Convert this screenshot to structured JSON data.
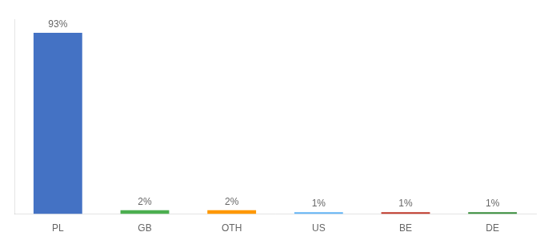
{
  "chart_data": {
    "type": "bar",
    "categories": [
      "PL",
      "GB",
      "OTH",
      "US",
      "BE",
      "DE"
    ],
    "values": [
      93,
      2,
      2,
      1,
      1,
      1
    ],
    "value_labels": [
      "93%",
      "2%",
      "2%",
      "1%",
      "1%",
      "1%"
    ],
    "colors": [
      "#4472c4",
      "#4caf50",
      "#ff9800",
      "#64b5f6",
      "#c0392b",
      "#388e3c"
    ],
    "ylim": [
      0,
      100
    ],
    "grid": false,
    "data_labels": true,
    "tick_labels": "x"
  }
}
